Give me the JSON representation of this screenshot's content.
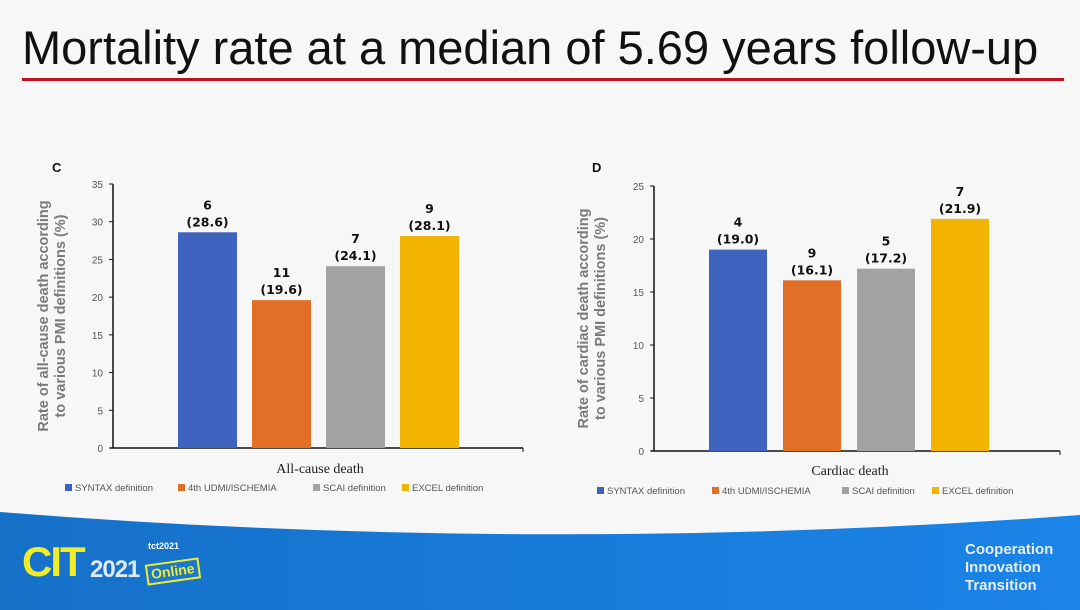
{
  "title": "Mortality rate at a median of 5.69 years follow-up",
  "colors": {
    "accent_rule": "#c0121f",
    "banner": "#1a7ad6"
  },
  "chart_data": [
    {
      "type": "bar",
      "panel": "C",
      "title": "",
      "xlabel": "All-cause death",
      "ylabel_lines": [
        "Rate of all-cause death according",
        "to various PMI definitions (%)"
      ],
      "ylim": [
        0,
        35
      ],
      "yticks": [
        0,
        5,
        10,
        15,
        20,
        25,
        30,
        35
      ],
      "categories": [
        "SYNTAX definition",
        "4th UDMI/ISCHEMIA",
        "SCAI definition",
        "EXCEL definition"
      ],
      "colors": [
        "#3f64bf",
        "#e36f26",
        "#a2a2a2",
        "#f2b400"
      ],
      "values": [
        28.6,
        19.6,
        24.1,
        28.1
      ],
      "counts": [
        6,
        11,
        7,
        9
      ],
      "legend": "bottom",
      "grid": false
    },
    {
      "type": "bar",
      "panel": "D",
      "title": "",
      "xlabel": "Cardiac death",
      "ylabel_lines": [
        "Rate of cardiac death according",
        "to various PMI definitions (%)"
      ],
      "ylim": [
        0,
        25
      ],
      "yticks": [
        0,
        5,
        10,
        15,
        20,
        25
      ],
      "categories": [
        "SYNTAX definition",
        "4th UDMI/ISCHEMIA",
        "SCAI definition",
        "EXCEL definition"
      ],
      "colors": [
        "#3f64bf",
        "#e36f26",
        "#a2a2a2",
        "#f2b400"
      ],
      "values": [
        19.0,
        16.1,
        17.2,
        21.9
      ],
      "counts": [
        4,
        9,
        5,
        7
      ],
      "legend": "bottom",
      "grid": false
    }
  ],
  "footer": {
    "logo_text": "CIT",
    "logo_year": "2021",
    "logo_partner": "tct2021",
    "logo_badge": "Online",
    "motto": [
      "Cooperation",
      "Innovation",
      "Transition"
    ]
  }
}
